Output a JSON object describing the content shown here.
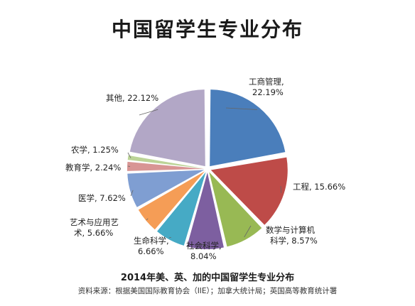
{
  "chart_data": {
    "type": "pie",
    "title": "中国留学生专业分布",
    "caption": "2014年美、英、加的中国留学生专业分布",
    "source": "资料来源：根据美国国际教育协会（IIE）；加拿大统计局；英国高等教育统计署",
    "slices": [
      {
        "label": "工商管理,",
        "label2": "22.19%",
        "value": 22.19,
        "color": "#4a7ebb"
      },
      {
        "label": "工程, 15.66%",
        "label2": "",
        "value": 15.66,
        "color": "#be4b48"
      },
      {
        "label": "数学与计算机",
        "label2": "科学, 8.57%",
        "value": 8.57,
        "color": "#98b954"
      },
      {
        "label": "社会科学,",
        "label2": "8.04%",
        "value": 8.04,
        "color": "#7d5fa0"
      },
      {
        "label": "生命科学,",
        "label2": "6.66%",
        "value": 6.66,
        "color": "#46aac5"
      },
      {
        "label": "艺术与应用艺",
        "label2": "术, 5.66%",
        "value": 5.66,
        "color": "#f59d56"
      },
      {
        "label": "医学, 7.62%",
        "label2": "",
        "value": 7.62,
        "color": "#7f9ed2"
      },
      {
        "label": "教育学, 2.24%",
        "label2": "",
        "value": 2.24,
        "color": "#d89594"
      },
      {
        "label": "农学, 1.25%",
        "label2": "",
        "value": 1.25,
        "color": "#bcd497"
      },
      {
        "label": "其他, 22.12%",
        "label2": "",
        "value": 22.12,
        "color": "#b2a7c6"
      }
    ]
  }
}
